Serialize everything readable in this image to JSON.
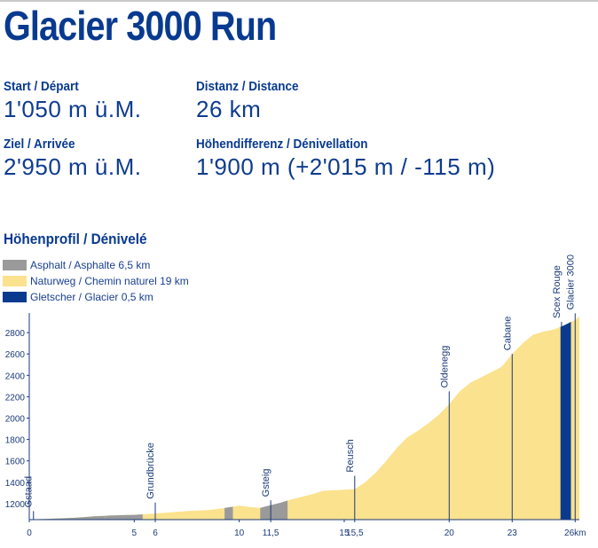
{
  "title": "Glacier 3000 Run",
  "stats": {
    "start_label": "Start / Départ",
    "start_value": "1'050 m ü.M.",
    "distance_label": "Distanz / Distance",
    "distance_value": "26 km",
    "finish_label": "Ziel / Arrivée",
    "finish_value": "2'950 m ü.M.",
    "elevation_label": "Höhendifferenz / Dénivellation",
    "elevation_value": "1'900 m (+2'015 m / -115 m)"
  },
  "profile_title": "Höhenprofil / Dénivelé",
  "legend": [
    {
      "label": "Asphalt / Asphalte 6,5 km",
      "color": "#9a9a9a"
    },
    {
      "label": "Naturweg / Chemin naturel 19 km",
      "color": "#fbe28e"
    },
    {
      "label": "Gletscher / Glacier 0,5 km",
      "color": "#0a3a8e"
    }
  ],
  "chart_data": {
    "type": "area",
    "xlabel": "",
    "ylabel": "",
    "xlim": [
      0,
      26.2
    ],
    "ylim": [
      1050,
      2950
    ],
    "x_ticks": [
      "0",
      "5",
      "6",
      "10",
      "11,5",
      "15",
      "15,5",
      "20",
      "23",
      "26km"
    ],
    "x_tick_values": [
      0,
      5,
      6,
      10,
      11.5,
      15,
      15.5,
      20,
      23,
      26
    ],
    "y_ticks": [
      1200,
      1400,
      1600,
      1800,
      2000,
      2200,
      2400,
      2600,
      2800
    ],
    "profile": {
      "x": [
        0,
        0.5,
        1,
        1.5,
        2,
        2.5,
        3,
        3.5,
        4,
        4.5,
        5,
        5.5,
        6,
        6.5,
        7,
        7.5,
        8,
        8.5,
        9,
        9.5,
        10,
        10.5,
        11,
        11.5,
        12,
        12.5,
        13,
        13.5,
        14,
        14.5,
        15,
        15.5,
        16,
        16.5,
        17,
        17.5,
        18,
        18.5,
        19,
        19.5,
        20,
        20.5,
        21,
        21.5,
        22,
        22.5,
        23,
        23.5,
        24,
        24.5,
        25,
        25.5,
        26,
        26.2
      ],
      "y": [
        1052,
        1055,
        1058,
        1062,
        1066,
        1072,
        1080,
        1085,
        1090,
        1092,
        1095,
        1100,
        1108,
        1115,
        1122,
        1130,
        1135,
        1140,
        1150,
        1165,
        1180,
        1168,
        1160,
        1185,
        1210,
        1240,
        1265,
        1290,
        1320,
        1325,
        1330,
        1335,
        1400,
        1490,
        1600,
        1720,
        1820,
        1880,
        1950,
        2030,
        2130,
        2250,
        2330,
        2380,
        2430,
        2480,
        2600,
        2700,
        2780,
        2810,
        2830,
        2870,
        2920,
        2950
      ]
    },
    "segments": [
      {
        "surface": "Asphalt",
        "from": 3.6,
        "to": 5.4
      },
      {
        "surface": "Asphalt",
        "from": 9.3,
        "to": 9.7
      },
      {
        "surface": "Asphalt",
        "from": 11.0,
        "to": 12.3
      },
      {
        "surface": "Gletscher",
        "from": 25.3,
        "to": 25.8
      }
    ],
    "markers": [
      {
        "label": "Gstaad",
        "x": 0.2,
        "top": 1130
      },
      {
        "label": "Grundbrücke",
        "x": 6.0,
        "top": 1210
      },
      {
        "label": "Gsteig",
        "x": 11.5,
        "top": 1230
      },
      {
        "label": "Reusch",
        "x": 15.5,
        "top": 1460
      },
      {
        "label": "Oldenegg",
        "x": 20.0,
        "top": 2250
      },
      {
        "label": "Cabane",
        "x": 23.0,
        "top": 2600
      },
      {
        "label": "Scex Rouge",
        "x": 25.35,
        "top": 2900
      },
      {
        "label": "Glacier 3000",
        "x": 26.0,
        "top": 2980
      }
    ]
  }
}
